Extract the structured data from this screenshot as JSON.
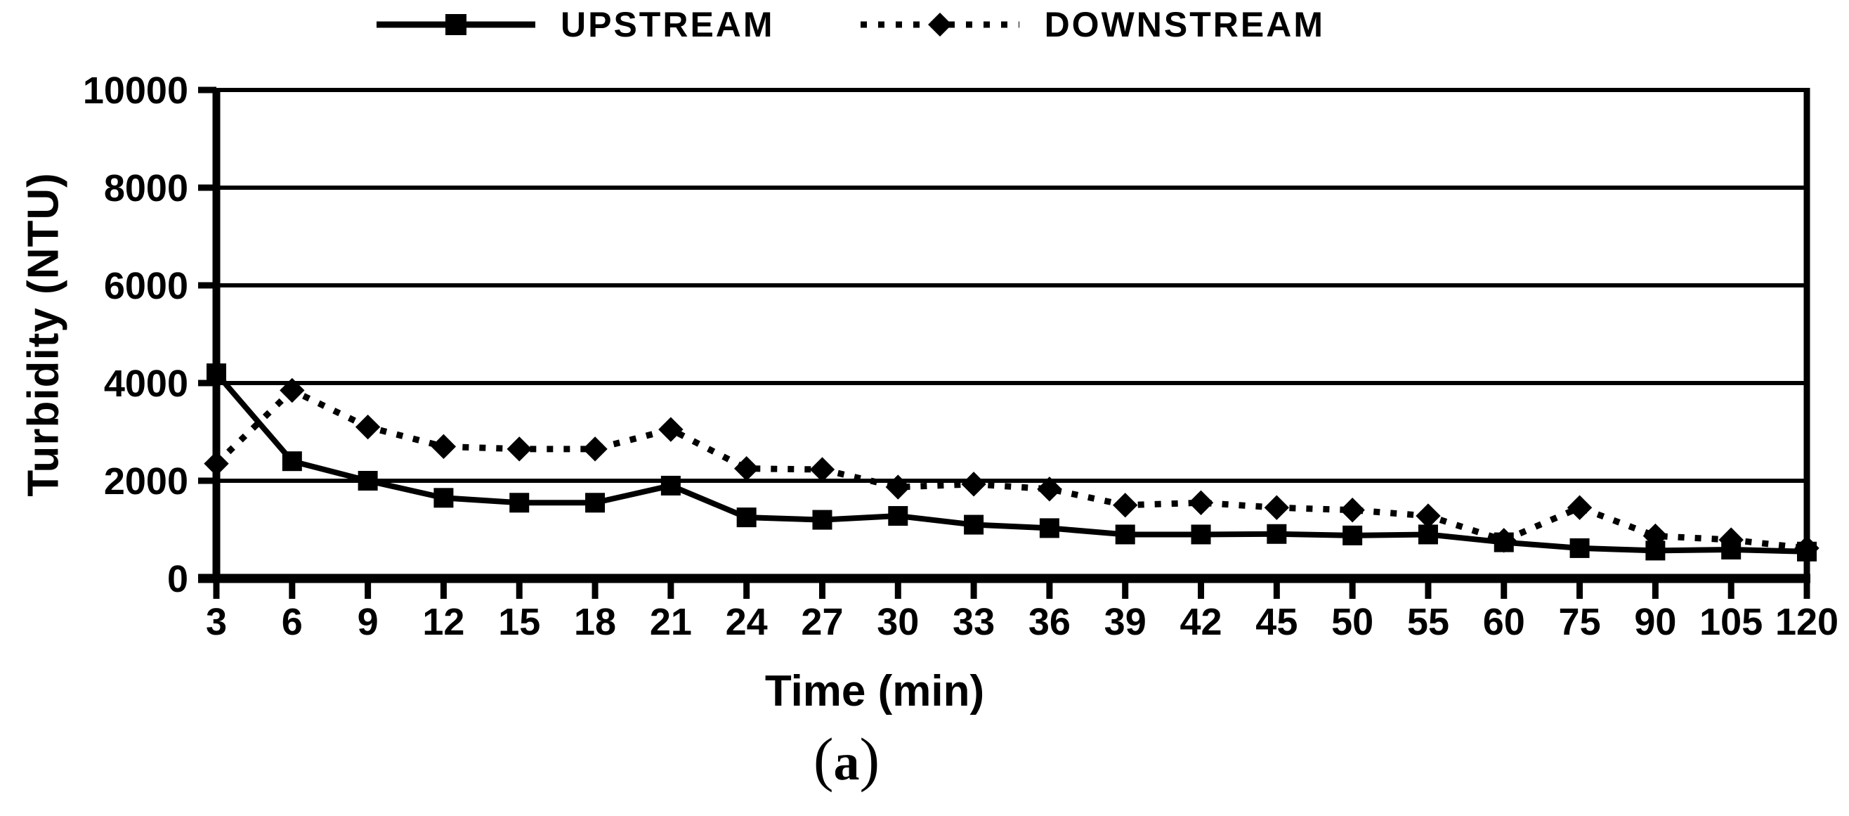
{
  "figure": {
    "caption": {
      "open": "(",
      "letter": "a",
      "close": ")"
    }
  },
  "legend": [
    {
      "name": "UPSTREAM",
      "marker": "square",
      "line": "solid"
    },
    {
      "name": "DOWNSTREAM",
      "marker": "diamond",
      "line": "dotted"
    }
  ],
  "chart_data": {
    "type": "line",
    "title": "",
    "xlabel": "Time (min)",
    "ylabel": "Turbidity (NTU)",
    "categories": [
      3,
      6,
      9,
      12,
      15,
      18,
      21,
      24,
      27,
      30,
      33,
      36,
      39,
      42,
      45,
      50,
      55,
      60,
      75,
      90,
      105,
      120
    ],
    "y_ticks": [
      0,
      2000,
      4000,
      6000,
      8000,
      10000
    ],
    "ylim": [
      0,
      10000
    ],
    "grid": "horizontal",
    "legend_position": "top-center",
    "ink_color": "#000000",
    "background_color": "#ffffff",
    "series": [
      {
        "name": "UPSTREAM",
        "line": "solid",
        "marker": "square",
        "color": "#000000",
        "values": [
          4200,
          2400,
          2000,
          1650,
          1550,
          1550,
          1900,
          1250,
          1200,
          1280,
          1100,
          1030,
          900,
          900,
          910,
          880,
          900,
          740,
          620,
          570,
          590,
          550
        ]
      },
      {
        "name": "DOWNSTREAM",
        "line": "dotted",
        "marker": "diamond",
        "color": "#000000",
        "values": [
          2350,
          3850,
          3100,
          2700,
          2650,
          2650,
          3050,
          2250,
          2230,
          1870,
          1930,
          1830,
          1500,
          1550,
          1450,
          1400,
          1280,
          780,
          1450,
          870,
          790,
          620
        ]
      }
    ]
  }
}
